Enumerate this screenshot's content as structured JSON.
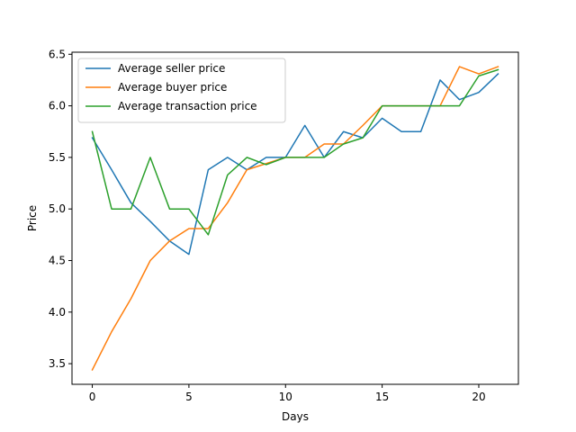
{
  "chart_data": {
    "type": "line",
    "xlabel": "Days",
    "ylabel": "Price",
    "xlim": [
      -1.05,
      22.05
    ],
    "ylim": [
      3.3,
      6.52
    ],
    "xticks": [
      0,
      5,
      10,
      15,
      20
    ],
    "yticks": [
      3.5,
      4.0,
      4.5,
      5.0,
      5.5,
      6.0,
      6.5
    ],
    "legend_position": "top-left",
    "x": [
      0,
      1,
      2,
      3,
      4,
      5,
      6,
      7,
      8,
      9,
      10,
      11,
      12,
      13,
      14,
      15,
      16,
      17,
      18,
      19,
      20,
      21
    ],
    "series": [
      {
        "name": "Average seller price",
        "color": "#1f77b4",
        "values": [
          5.69,
          5.38,
          5.06,
          4.88,
          4.69,
          4.56,
          5.38,
          5.5,
          5.38,
          5.5,
          5.5,
          5.81,
          5.5,
          5.75,
          5.69,
          5.88,
          5.75,
          5.75,
          6.25,
          6.06,
          6.13,
          6.31
        ]
      },
      {
        "name": "Average buyer price",
        "color": "#ff7f0e",
        "values": [
          3.44,
          3.81,
          4.13,
          4.5,
          4.69,
          4.81,
          4.81,
          5.06,
          5.38,
          5.44,
          5.5,
          5.5,
          5.63,
          5.63,
          5.81,
          6.0,
          6.0,
          6.0,
          6.0,
          6.38,
          6.31,
          6.38
        ]
      },
      {
        "name": "Average transaction price",
        "color": "#2ca02c",
        "values": [
          5.75,
          5.0,
          5.0,
          5.5,
          5.0,
          5.0,
          4.75,
          5.33,
          5.5,
          5.43,
          5.5,
          5.5,
          5.5,
          5.63,
          5.69,
          6.0,
          6.0,
          6.0,
          6.0,
          6.0,
          6.29,
          6.35
        ]
      }
    ]
  }
}
